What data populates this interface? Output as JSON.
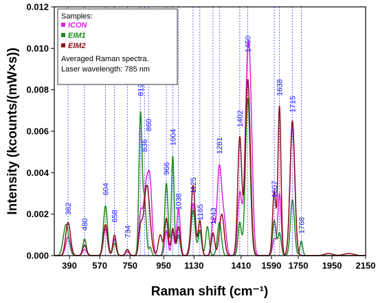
{
  "chart_data": {
    "type": "line",
    "xlabel": "Raman shift (cm⁻¹)",
    "ylabel": "Intensity (kcounts/(mW×s))",
    "xlim": [
      300,
      2150
    ],
    "ylim": [
      0,
      0.012
    ],
    "x_ticks": [
      {
        "value": 390,
        "label": "390"
      },
      {
        "value": 570,
        "label": "570"
      },
      {
        "value": 750,
        "label": "750"
      },
      {
        "value": 950,
        "label": "950"
      },
      {
        "value": 1130,
        "label": "1130"
      },
      {
        "value": 1410,
        "label": "1410"
      },
      {
        "value": 1590,
        "label": "1590"
      },
      {
        "value": 1750,
        "label": "1750"
      },
      {
        "value": 1950,
        "label": "1950"
      },
      {
        "value": 2150,
        "label": "2150"
      }
    ],
    "y_ticks": [
      {
        "value": 0,
        "label": "0.000"
      },
      {
        "value": 0.002,
        "label": "0.002"
      },
      {
        "value": 0.004,
        "label": "0.004"
      },
      {
        "value": 0.006,
        "label": "0.006"
      },
      {
        "value": 0.008,
        "label": "0.008"
      },
      {
        "value": 0.01,
        "label": "0.010"
      },
      {
        "value": 0.012,
        "label": "0.012"
      }
    ],
    "peak_lines": [
      382,
      480,
      604,
      658,
      734,
      812,
      836,
      860,
      966,
      1004,
      1038,
      1125,
      1165,
      1243,
      1281,
      1402,
      1450,
      1607,
      1638,
      1715,
      1768
    ],
    "peak_labels": [
      {
        "x": 382,
        "y": 0.00195,
        "label": "382"
      },
      {
        "x": 480,
        "y": 0.0012,
        "label": "480"
      },
      {
        "x": 604,
        "y": 0.0029,
        "label": "604"
      },
      {
        "x": 658,
        "y": 0.0016,
        "label": "658"
      },
      {
        "x": 734,
        "y": 0.00085,
        "label": "734"
      },
      {
        "x": 812,
        "y": 0.0077,
        "label": "812"
      },
      {
        "x": 836,
        "y": 0.005,
        "label": "836"
      },
      {
        "x": 860,
        "y": 0.006,
        "label": "860"
      },
      {
        "x": 966,
        "y": 0.0039,
        "label": "966"
      },
      {
        "x": 1004,
        "y": 0.0053,
        "label": "1004"
      },
      {
        "x": 1038,
        "y": 0.0022,
        "label": "1038"
      },
      {
        "x": 1125,
        "y": 0.003,
        "label": "1125"
      },
      {
        "x": 1165,
        "y": 0.0017,
        "label": "1165"
      },
      {
        "x": 1243,
        "y": 0.0015,
        "label": "1243"
      },
      {
        "x": 1281,
        "y": 0.0049,
        "label": "1281"
      },
      {
        "x": 1402,
        "y": 0.0062,
        "label": "1402"
      },
      {
        "x": 1450,
        "y": 0.0098,
        "label": "1450"
      },
      {
        "x": 1607,
        "y": 0.0028,
        "label": "1607"
      },
      {
        "x": 1638,
        "y": 0.0077,
        "label": "1638"
      },
      {
        "x": 1715,
        "y": 0.0069,
        "label": "1715"
      },
      {
        "x": 1768,
        "y": 0.00105,
        "label": "1768"
      }
    ],
    "legend": {
      "title": "Samples:",
      "notes": [
        "Averaged Raman spectra.",
        "Laser wavelength: 785 nm"
      ]
    },
    "series": [
      {
        "name": "ICON",
        "color": "#e020e0",
        "peaks": [
          [
            382,
            0.0009,
            14
          ],
          [
            480,
            0.0003,
            12
          ],
          [
            604,
            0.0013,
            12
          ],
          [
            658,
            0.0008,
            10
          ],
          [
            734,
            0.0002,
            10
          ],
          [
            812,
            0.0018,
            10
          ],
          [
            845,
            0.0033,
            16
          ],
          [
            870,
            0.0028,
            12
          ],
          [
            966,
            0.0012,
            10
          ],
          [
            1004,
            0.0012,
            8
          ],
          [
            1038,
            0.0023,
            10
          ],
          [
            1125,
            0.0025,
            14
          ],
          [
            1165,
            0.0012,
            10
          ],
          [
            1243,
            0.0017,
            10
          ],
          [
            1281,
            0.0043,
            14
          ],
          [
            1310,
            0.0015,
            12
          ],
          [
            1402,
            0.003,
            12
          ],
          [
            1450,
            0.0094,
            16
          ],
          [
            1470,
            0.003,
            12
          ],
          [
            1607,
            0.0008,
            10
          ],
          [
            1638,
            0.003,
            10
          ],
          [
            1715,
            0.0062,
            14
          ]
        ]
      },
      {
        "name": "EIM1",
        "color": "#1a8a1a",
        "peaks": [
          [
            370,
            0.0015,
            16
          ],
          [
            480,
            0.0008,
            10
          ],
          [
            604,
            0.0024,
            12
          ],
          [
            658,
            0.0006,
            10
          ],
          [
            734,
            0.0003,
            10
          ],
          [
            812,
            0.0068,
            9
          ],
          [
            836,
            0.0027,
            10
          ],
          [
            870,
            0.0004,
            8
          ],
          [
            966,
            0.0035,
            10
          ],
          [
            1004,
            0.0048,
            8
          ],
          [
            1038,
            0.001,
            10
          ],
          [
            1125,
            0.0022,
            12
          ],
          [
            1165,
            0.0012,
            10
          ],
          [
            1210,
            0.0014,
            10
          ],
          [
            1281,
            0.0016,
            12
          ],
          [
            1402,
            0.0016,
            10
          ],
          [
            1450,
            0.0076,
            14
          ],
          [
            1607,
            0.0017,
            10
          ],
          [
            1638,
            0.0011,
            10
          ],
          [
            1715,
            0.0027,
            12
          ],
          [
            1768,
            0.0007,
            8
          ]
        ]
      },
      {
        "name": "EIM2",
        "color": "#8b0d1a",
        "peaks": [
          [
            382,
            0.0016,
            14
          ],
          [
            480,
            0.0005,
            12
          ],
          [
            604,
            0.0015,
            12
          ],
          [
            658,
            0.001,
            10
          ],
          [
            734,
            0.0003,
            10
          ],
          [
            812,
            0.0012,
            10
          ],
          [
            850,
            0.0034,
            18
          ],
          [
            930,
            0.001,
            12
          ],
          [
            966,
            0.0018,
            10
          ],
          [
            1004,
            0.0013,
            10
          ],
          [
            1038,
            0.0014,
            10
          ],
          [
            1125,
            0.0034,
            12
          ],
          [
            1165,
            0.0017,
            10
          ],
          [
            1243,
            0.0011,
            10
          ],
          [
            1295,
            0.002,
            14
          ],
          [
            1402,
            0.0057,
            12
          ],
          [
            1450,
            0.0085,
            15
          ],
          [
            1607,
            0.0031,
            10
          ],
          [
            1638,
            0.0072,
            9
          ],
          [
            1715,
            0.0065,
            14
          ],
          [
            1930,
            0.0001,
            25
          ],
          [
            2050,
            0.0001,
            30
          ]
        ]
      }
    ]
  }
}
